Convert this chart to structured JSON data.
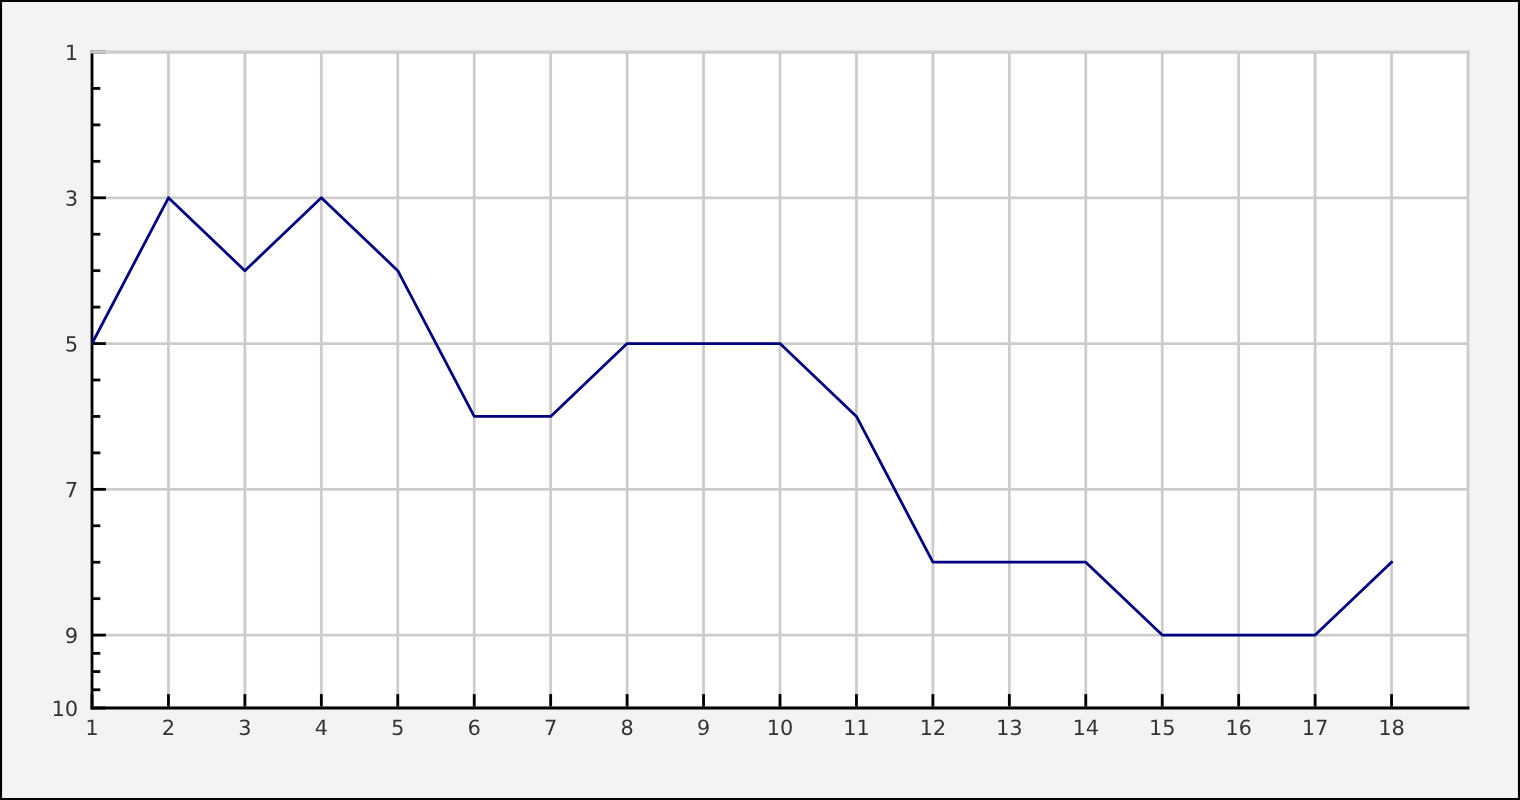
{
  "chart_data": {
    "type": "line",
    "x": [
      1,
      2,
      3,
      4,
      5,
      6,
      7,
      8,
      9,
      10,
      11,
      12,
      13,
      14,
      15,
      16,
      17,
      18
    ],
    "series": [
      {
        "color": "#000080",
        "values": [
          5,
          3,
          4,
          3,
          4,
          6,
          6,
          5,
          5,
          5,
          6,
          8,
          8,
          8,
          9,
          9,
          9,
          8
        ]
      }
    ],
    "xlim": [
      1,
      19
    ],
    "xticks": [
      1,
      2,
      3,
      4,
      5,
      6,
      7,
      8,
      9,
      10,
      11,
      12,
      13,
      14,
      15,
      16,
      17,
      18
    ],
    "ylim": [
      10,
      1
    ],
    "yticks": [
      1,
      {
        "value": 1.5,
        "label": null
      },
      {
        "value": 2,
        "label": null
      },
      {
        "value": 2.5,
        "label": null
      },
      3,
      {
        "value": 3.5,
        "label": null
      },
      {
        "value": 4,
        "label": null
      },
      {
        "value": 4.5,
        "label": null
      },
      5,
      {
        "value": 5.5,
        "label": null
      },
      {
        "value": 6,
        "label": null
      },
      {
        "value": 6.5,
        "label": null
      },
      7,
      {
        "value": 7.5,
        "label": null
      },
      {
        "value": 8,
        "label": null
      },
      {
        "value": 8.5,
        "label": null
      },
      9,
      {
        "value": 9.25,
        "label": null
      },
      {
        "value": 9.5,
        "label": null
      },
      {
        "value": 9.75,
        "label": null
      },
      10
    ],
    "grid": true,
    "line_style": "solid"
  }
}
